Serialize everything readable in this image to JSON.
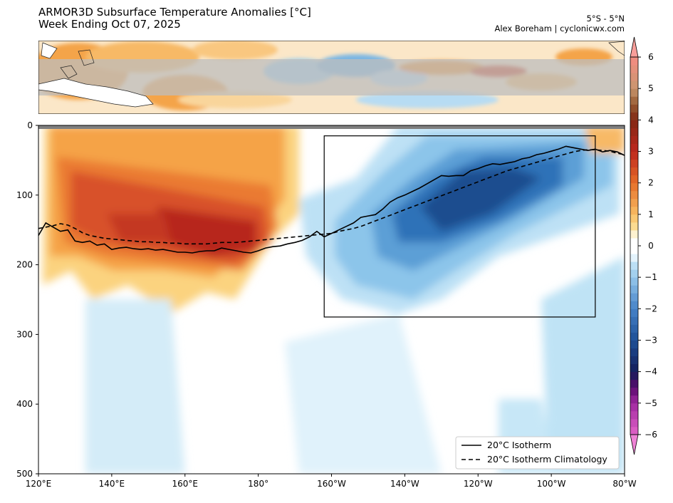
{
  "header": {
    "title": "ARMOR3D Subsurface Temperature Anomalies [°C]",
    "subtitle": "Week Ending Oct 07, 2025",
    "region": "5°S - 5°N",
    "credit": "Alex Boreham | cyclonicwx.com"
  },
  "chart_data": [
    {
      "type": "heatmap",
      "panel": "map-inset",
      "description_visible": "SST anomaly map of equatorial Pacific 120°E–80°W with 5°S–5°N band shaded",
      "band": "5°S - 5°N",
      "xlim_lon_east": [
        120,
        280
      ]
    },
    {
      "type": "heatmap",
      "panel": "depth-longitude-section",
      "x_tick_labels": [
        "120°E",
        "140°E",
        "160°E",
        "180°",
        "160°W",
        "140°W",
        "120°W",
        "100°W",
        "80°W"
      ],
      "x_ticks_lon_east": [
        120,
        140,
        160,
        180,
        200,
        220,
        240,
        260,
        280
      ],
      "y_tick_labels": [
        "0",
        "100",
        "200",
        "300",
        "400",
        "500"
      ],
      "y_ticks_depth_m": [
        0,
        100,
        200,
        300,
        400,
        500
      ],
      "xlim_lon_east": [
        120,
        280
      ],
      "ylim_depth_m": [
        500,
        0
      ],
      "colorbar": {
        "ticks": [
          6,
          5,
          4,
          3,
          2,
          1,
          0,
          -1,
          -2,
          -3,
          -4,
          -5,
          -6
        ],
        "tick_labels": [
          "6",
          "5",
          "4",
          "3",
          "2",
          "1",
          "0",
          "−1",
          "−2",
          "−3",
          "−4",
          "−5",
          "−6"
        ],
        "range": [
          -6.5,
          6.5
        ],
        "step": 0.25
      },
      "box_region": {
        "lon_east": [
          198,
          272
        ],
        "depth_m": [
          15,
          275
        ]
      },
      "series": [
        {
          "name": "20°C Isotherm",
          "style": "solid",
          "x_lon_east": [
            120,
            122,
            124,
            126,
            128,
            130,
            132,
            134,
            136,
            138,
            140,
            142,
            144,
            146,
            148,
            150,
            152,
            154,
            156,
            158,
            160,
            162,
            164,
            166,
            168,
            170,
            172,
            174,
            176,
            178,
            180,
            182,
            184,
            186,
            188,
            190,
            192,
            194,
            196,
            198,
            200,
            202,
            204,
            206,
            208,
            210,
            212,
            214,
            216,
            218,
            220,
            222,
            224,
            226,
            228,
            230,
            232,
            234,
            236,
            238,
            240,
            242,
            244,
            246,
            248,
            250,
            252,
            254,
            256,
            258,
            260,
            262,
            264,
            266,
            268,
            270,
            272,
            274,
            276,
            278,
            280
          ],
          "y_depth_m": [
            158,
            140,
            146,
            152,
            150,
            166,
            168,
            166,
            172,
            170,
            178,
            176,
            175,
            177,
            178,
            177,
            179,
            178,
            180,
            182,
            182,
            183,
            181,
            180,
            180,
            176,
            178,
            180,
            182,
            183,
            180,
            176,
            174,
            173,
            170,
            168,
            165,
            160,
            152,
            160,
            155,
            150,
            145,
            140,
            132,
            130,
            128,
            120,
            110,
            104,
            100,
            95,
            90,
            84,
            78,
            72,
            73,
            72,
            72,
            65,
            62,
            58,
            55,
            56,
            54,
            52,
            48,
            46,
            42,
            40,
            37,
            34,
            30,
            32,
            34,
            36,
            34,
            38,
            36,
            38,
            43
          ]
        },
        {
          "name": "20°C Isotherm Climatology",
          "style": "dashed",
          "x_lon_east": [
            120,
            122,
            124,
            126,
            128,
            130,
            132,
            134,
            136,
            138,
            140,
            142,
            144,
            146,
            148,
            150,
            152,
            154,
            156,
            158,
            160,
            162,
            164,
            166,
            168,
            170,
            172,
            174,
            176,
            178,
            180,
            182,
            184,
            186,
            188,
            190,
            192,
            194,
            196,
            198,
            200,
            202,
            204,
            206,
            208,
            210,
            212,
            214,
            216,
            218,
            220,
            222,
            224,
            226,
            228,
            230,
            232,
            234,
            236,
            238,
            240,
            242,
            244,
            246,
            248,
            250,
            252,
            254,
            256,
            258,
            260,
            262,
            264,
            266,
            268,
            270,
            272,
            274,
            276,
            278,
            280
          ],
          "y_depth_m": [
            148,
            146,
            144,
            141,
            143,
            148,
            154,
            158,
            160,
            162,
            163,
            164,
            165,
            166,
            167,
            167,
            168,
            168,
            169,
            169,
            170,
            170,
            170,
            170,
            169,
            168,
            168,
            168,
            167,
            166,
            165,
            164,
            163,
            162,
            161,
            160,
            159,
            158,
            157,
            156,
            155,
            152,
            150,
            148,
            145,
            141,
            137,
            133,
            129,
            125,
            121,
            117,
            113,
            109,
            105,
            101,
            97,
            93,
            89,
            85,
            81,
            77,
            73,
            69,
            65,
            62,
            59,
            56,
            53,
            50,
            47,
            44,
            41,
            38,
            36,
            35,
            35,
            36,
            37,
            40,
            42
          ]
        }
      ],
      "legend": {
        "placement": "bottom-right",
        "entries": [
          "20°C Isotherm",
          "20°C Isotherm Climatology"
        ]
      }
    }
  ]
}
